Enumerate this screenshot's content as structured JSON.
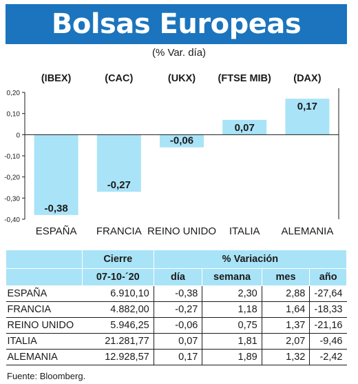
{
  "header": {
    "title": "Bolsas Europeas",
    "subtitle": "(% Var. día)"
  },
  "chart_data": {
    "type": "bar",
    "categories": [
      "ESPAÑA",
      "FRANCIA",
      "REINO UNIDO",
      "ITALIA",
      "ALEMANIA"
    ],
    "index_labels": [
      "(IBEX)",
      "(CAC)",
      "(UKX)",
      "(FTSE MIB)",
      "(DAX)"
    ],
    "values": [
      -0.38,
      -0.27,
      -0.06,
      0.07,
      0.17
    ],
    "value_labels": [
      "-0,38",
      "-0,27",
      "-0,06",
      "0,07",
      "0,17"
    ],
    "ylim": [
      -0.4,
      0.2
    ],
    "yticks": [
      0.2,
      0.1,
      0,
      -0.1,
      -0.2,
      -0.3,
      -0.4
    ],
    "ytick_labels": [
      "0,20",
      "0,10",
      "0",
      "-0,10",
      "-0,20",
      "-0,30",
      "-0,40"
    ],
    "bar_color": "#a9e3f7",
    "grid": false
  },
  "table": {
    "group_headers": {
      "close": "Cierre",
      "variation": "% Variación"
    },
    "column_headers": {
      "date": "07-10-´20",
      "day": "día",
      "week": "semana",
      "month": "mes",
      "year": "año"
    },
    "rows": [
      {
        "name": "ESPAÑA",
        "close": "6.910,10",
        "day": "-0,38",
        "week": "2,30",
        "month": "2,88",
        "year": "-27,64"
      },
      {
        "name": "FRANCIA",
        "close": "4.882,00",
        "day": "-0,27",
        "week": "1,18",
        "month": "1,64",
        "year": "-18,33"
      },
      {
        "name": "REINO UNIDO",
        "close": "5.946,25",
        "day": "-0,06",
        "week": "0,75",
        "month": "1,37",
        "year": "-21,16"
      },
      {
        "name": "ITALIA",
        "close": "21.281,77",
        "day": "0,07",
        "week": "1,81",
        "month": "2,07",
        "year": "-9,46"
      },
      {
        "name": "ALEMANIA",
        "close": "12.928,57",
        "day": "0,17",
        "week": "1,89",
        "month": "1,32",
        "year": "-2,42"
      }
    ]
  },
  "source": "Fuente: Bloomberg."
}
